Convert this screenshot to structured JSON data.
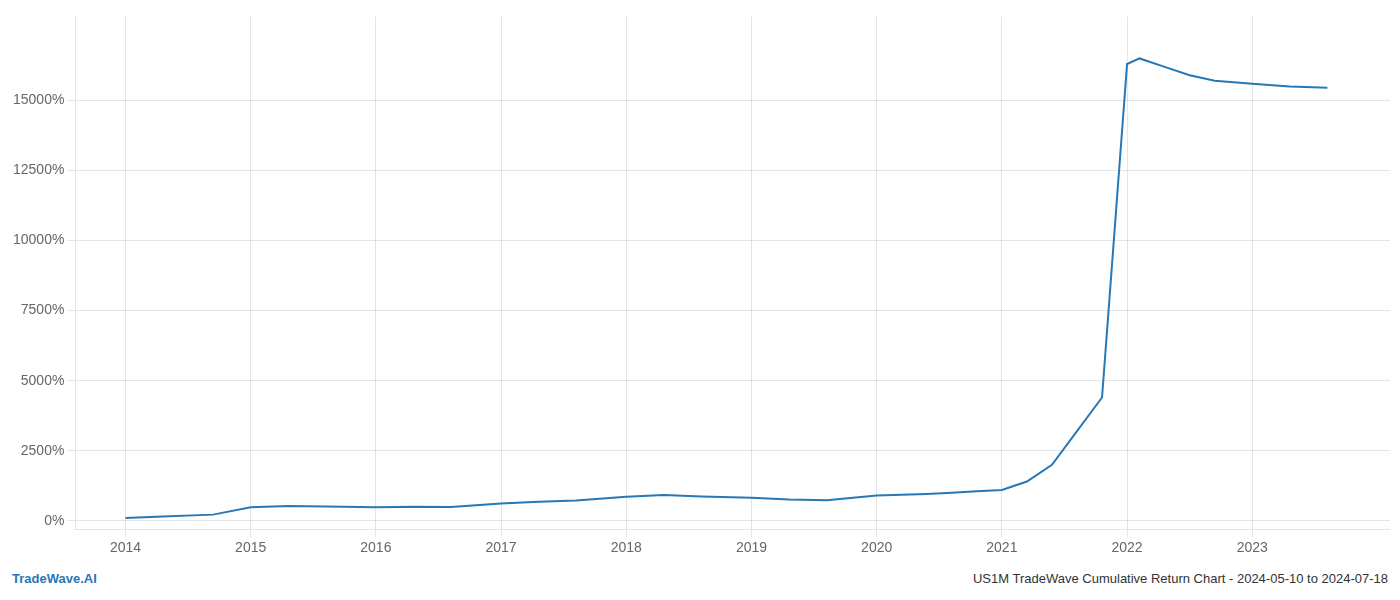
{
  "chart_data": {
    "type": "line",
    "x": [
      2014.0,
      2014.3,
      2014.7,
      2015.0,
      2015.3,
      2015.6,
      2016.0,
      2016.3,
      2016.6,
      2017.0,
      2017.3,
      2017.6,
      2018.0,
      2018.3,
      2018.6,
      2019.0,
      2019.3,
      2019.6,
      2020.0,
      2020.2,
      2020.4,
      2020.6,
      2020.8,
      2021.0,
      2021.2,
      2021.4,
      2021.6,
      2021.8,
      2022.0,
      2022.1,
      2022.3,
      2022.5,
      2022.7,
      2023.0,
      2023.3,
      2023.6
    ],
    "values": [
      100,
      150,
      220,
      480,
      530,
      510,
      480,
      500,
      490,
      620,
      680,
      720,
      860,
      920,
      870,
      820,
      760,
      730,
      900,
      930,
      960,
      1000,
      1050,
      1100,
      1400,
      2000,
      3200,
      4400,
      16300,
      16500,
      16200,
      15900,
      15700,
      15600,
      15500,
      15450
    ],
    "color": "#2878b5",
    "xlim": [
      2013.6,
      2024.1
    ],
    "xticks": [
      2014,
      2015,
      2016,
      2017,
      2018,
      2019,
      2020,
      2021,
      2022,
      2023
    ],
    "ylim": [
      -300,
      18000
    ],
    "yticks": [
      {
        "value": 0,
        "label": "0%"
      },
      {
        "value": 2500,
        "label": "2500%"
      },
      {
        "value": 5000,
        "label": "5000%"
      },
      {
        "value": 7500,
        "label": "7500%"
      },
      {
        "value": 10000,
        "label": "10000%"
      },
      {
        "value": 12500,
        "label": "12500%"
      },
      {
        "value": 15000,
        "label": "15000%"
      }
    ],
    "grid": true,
    "annotations": [
      "TradeWave.AI",
      "US1M TradeWave Cumulative Return Chart - 2024-05-10 to 2024-07-18"
    ]
  }
}
